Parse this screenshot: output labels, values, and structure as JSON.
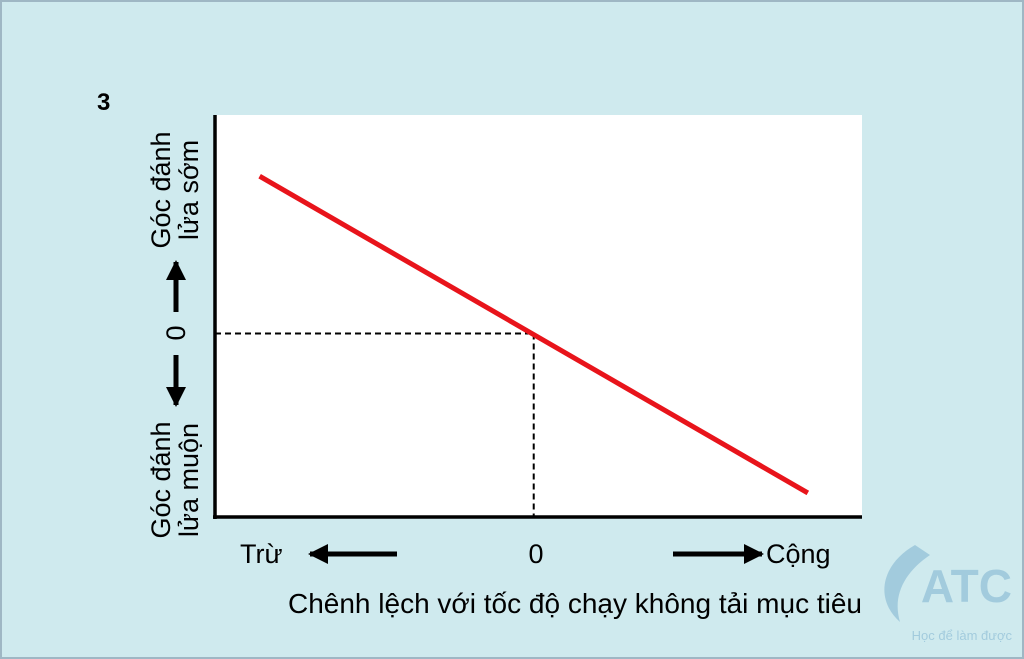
{
  "figure_number": "3",
  "chart_data": {
    "type": "line",
    "title": "",
    "xlabel": "Chênh lệch với tốc độ chạy không tải mục tiêu",
    "x_left_label": "Trừ",
    "x_zero_label": "0",
    "x_right_label": "Cộng",
    "y_top_label": [
      "Góc đánh",
      "lửa sớm"
    ],
    "y_zero_label": "0",
    "y_bottom_label": [
      "Góc đánh",
      "lửa muộn"
    ],
    "xlim": [
      -1,
      1.03
    ],
    "ylim": [
      -0.84,
      1
    ],
    "series": [
      {
        "name": "ignition-timing",
        "color": "#e8141b",
        "x": [
          -0.86,
          0.86
        ],
        "y": [
          0.72,
          -0.73
        ]
      }
    ],
    "reference_point": {
      "x": 0,
      "y": 0
    },
    "grid": false
  },
  "watermark": {
    "logo_text": "ATC",
    "slogan": "Học để làm được",
    "color": "#7fb3d0"
  }
}
